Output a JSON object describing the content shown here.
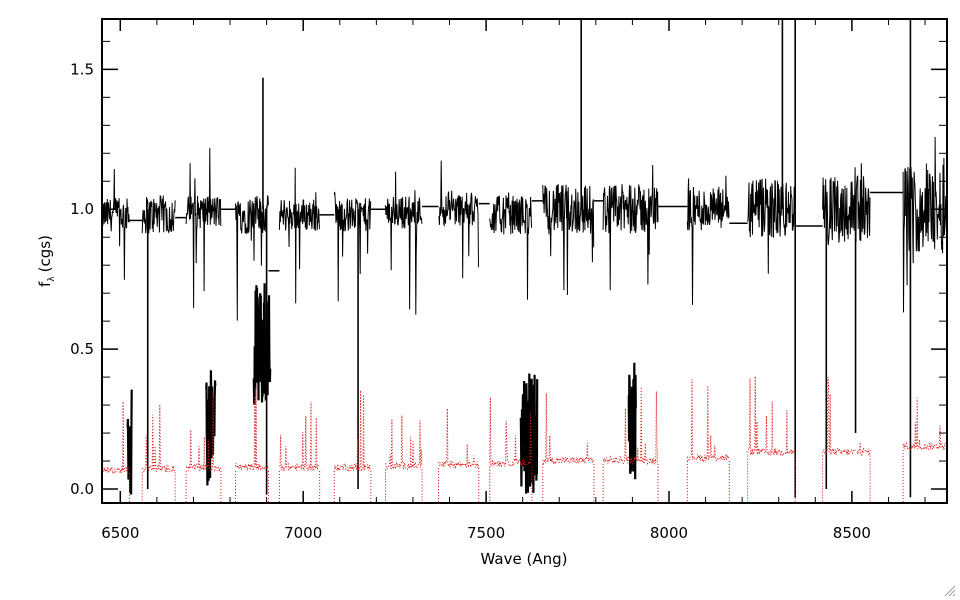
{
  "chart_data": {
    "type": "line",
    "title": "",
    "xlabel": "Wave (Ang)",
    "ylabel": "f",
    "ylabel_subscript": "λ",
    "ylabel_unit": "(cgs)",
    "xlim": [
      6450,
      8760
    ],
    "ylim": [
      -0.05,
      1.68
    ],
    "x_ticks": [
      6500,
      7000,
      7500,
      8000,
      8500
    ],
    "x_tick_labels": [
      "6500",
      "7000",
      "7500",
      "8000",
      "8500"
    ],
    "y_ticks": [
      0.0,
      0.5,
      1.0,
      1.5
    ],
    "y_tick_labels": [
      "0.0",
      "0.5",
      "1.0",
      "1.5"
    ],
    "grid": false,
    "colors": {
      "flux": "#000000",
      "error": "#e02020"
    },
    "series": [
      {
        "style": "solid",
        "chunks": [
          {
            "x0": 6450,
            "x1": 6525,
            "level": 0.98,
            "noise": 0.06
          },
          {
            "x0": 6560,
            "x1": 6650,
            "level": 0.98,
            "noise": 0.07
          },
          {
            "x0": 6680,
            "x1": 6775,
            "level": 0.99,
            "noise": 0.06
          },
          {
            "x0": 6815,
            "x1": 6905,
            "level": 0.98,
            "noise": 0.07
          },
          {
            "x0": 6935,
            "x1": 7045,
            "level": 0.98,
            "noise": 0.06
          },
          {
            "x0": 7085,
            "x1": 7185,
            "level": 0.98,
            "noise": 0.06
          },
          {
            "x0": 7225,
            "x1": 7325,
            "level": 0.99,
            "noise": 0.06
          },
          {
            "x0": 7370,
            "x1": 7480,
            "level": 1.0,
            "noise": 0.06
          },
          {
            "x0": 7510,
            "x1": 7625,
            "level": 0.98,
            "noise": 0.07
          },
          {
            "x0": 7655,
            "x1": 7795,
            "level": 1.0,
            "noise": 0.09
          },
          {
            "x0": 7820,
            "x1": 7970,
            "level": 1.0,
            "noise": 0.09
          },
          {
            "x0": 8050,
            "x1": 8165,
            "level": 1.0,
            "noise": 0.08
          },
          {
            "x0": 8215,
            "x1": 8345,
            "level": 1.0,
            "noise": 0.11
          },
          {
            "x0": 8420,
            "x1": 8550,
            "level": 1.0,
            "noise": 0.12
          },
          {
            "x0": 8640,
            "x1": 8760,
            "level": 1.0,
            "noise": 0.16
          }
        ],
        "gap_segments": [
          {
            "x0": 6525,
            "x1": 6560,
            "y": 0.96
          },
          {
            "x0": 6650,
            "x1": 6680,
            "y": 0.97
          },
          {
            "x0": 6775,
            "x1": 6815,
            "y": 1.0
          },
          {
            "x0": 6905,
            "x1": 6935,
            "y": 0.78
          },
          {
            "x0": 7045,
            "x1": 7085,
            "y": 0.98
          },
          {
            "x0": 7185,
            "x1": 7225,
            "y": 1.0
          },
          {
            "x0": 7325,
            "x1": 7370,
            "y": 1.01
          },
          {
            "x0": 7480,
            "x1": 7510,
            "y": 1.02
          },
          {
            "x0": 7625,
            "x1": 7655,
            "y": 1.03
          },
          {
            "x0": 7795,
            "x1": 7820,
            "y": 1.03
          },
          {
            "x0": 7970,
            "x1": 8050,
            "y": 1.01
          },
          {
            "x0": 8165,
            "x1": 8215,
            "y": 0.95
          },
          {
            "x0": 8345,
            "x1": 8420,
            "y": 0.94
          },
          {
            "x0": 8550,
            "x1": 8640,
            "y": 1.06
          }
        ],
        "absorption_features": [
          {
            "x0": 6520,
            "x1": 6532,
            "y": -0.02
          },
          {
            "x0": 6735,
            "x1": 6760,
            "y": 0.0
          },
          {
            "x0": 6865,
            "x1": 6910,
            "y": 0.3
          },
          {
            "x0": 7595,
            "x1": 7640,
            "y": -0.03
          },
          {
            "x0": 7890,
            "x1": 7910,
            "y": 0.02
          }
        ],
        "spikes": [
          {
            "x": 6890,
            "y": 1.47
          },
          {
            "x": 7760,
            "y": 1.7
          },
          {
            "x": 8310,
            "y": 1.7
          },
          {
            "x": 8345,
            "y": 1.7
          },
          {
            "x": 8660,
            "y": 1.7
          }
        ],
        "drops": [
          {
            "x": 6575,
            "y": 0.0
          },
          {
            "x": 6900,
            "y": -0.02
          },
          {
            "x": 7150,
            "y": 0.0
          },
          {
            "x": 8345,
            "y": -0.03
          },
          {
            "x": 8430,
            "y": 0.0
          },
          {
            "x": 8510,
            "y": 0.2
          },
          {
            "x": 8660,
            "y": -0.03
          }
        ]
      },
      {
        "style": "dotted",
        "chunks": [
          {
            "x0": 6450,
            "x1": 6525,
            "level": 0.055
          },
          {
            "x0": 6560,
            "x1": 6650,
            "level": 0.06
          },
          {
            "x0": 6680,
            "x1": 6775,
            "level": 0.065
          },
          {
            "x0": 6815,
            "x1": 6905,
            "level": 0.065
          },
          {
            "x0": 6935,
            "x1": 7045,
            "level": 0.065
          },
          {
            "x0": 7085,
            "x1": 7185,
            "level": 0.065
          },
          {
            "x0": 7225,
            "x1": 7325,
            "level": 0.07
          },
          {
            "x0": 7370,
            "x1": 7480,
            "level": 0.075
          },
          {
            "x0": 7510,
            "x1": 7625,
            "level": 0.08
          },
          {
            "x0": 7655,
            "x1": 7795,
            "level": 0.09
          },
          {
            "x0": 7820,
            "x1": 7970,
            "level": 0.09
          },
          {
            "x0": 8050,
            "x1": 8165,
            "level": 0.1
          },
          {
            "x0": 8215,
            "x1": 8345,
            "level": 0.12
          },
          {
            "x0": 8420,
            "x1": 8550,
            "level": 0.12
          },
          {
            "x0": 8640,
            "x1": 8760,
            "level": 0.14
          }
        ]
      }
    ]
  }
}
